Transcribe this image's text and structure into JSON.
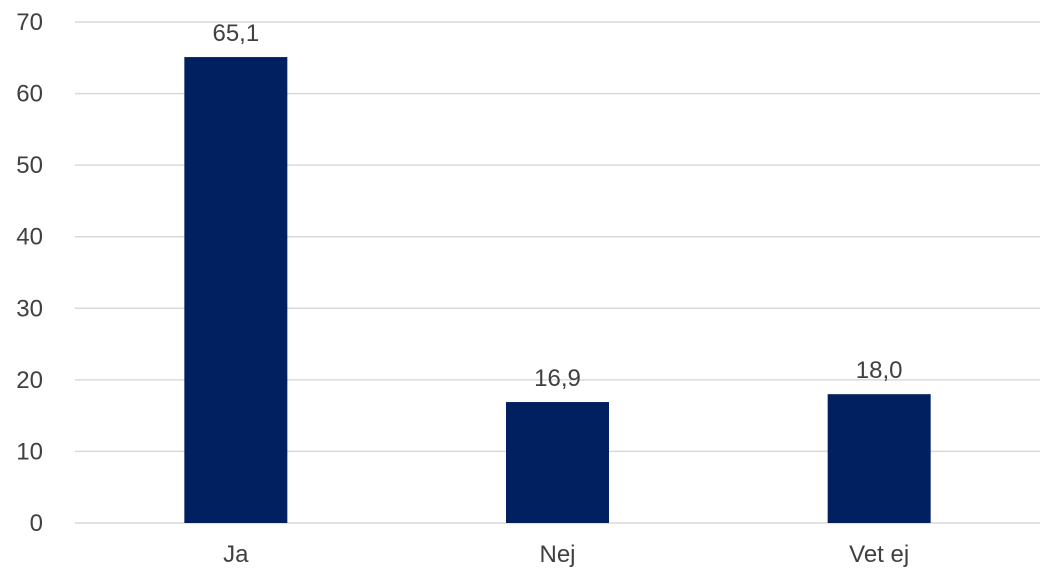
{
  "chart_data": {
    "type": "bar",
    "categories": [
      "Ja",
      "Nej",
      "Vet ej"
    ],
    "values": [
      65.1,
      16.9,
      18.0
    ],
    "data_labels": [
      "65,1",
      "16,9",
      "18,0"
    ],
    "y_ticks": [
      "0",
      "10",
      "20",
      "30",
      "40",
      "50",
      "60",
      "70"
    ],
    "ylim": [
      0,
      70
    ],
    "grid": true,
    "bar_color": "#002060",
    "title": "",
    "xlabel": "",
    "ylabel": ""
  }
}
